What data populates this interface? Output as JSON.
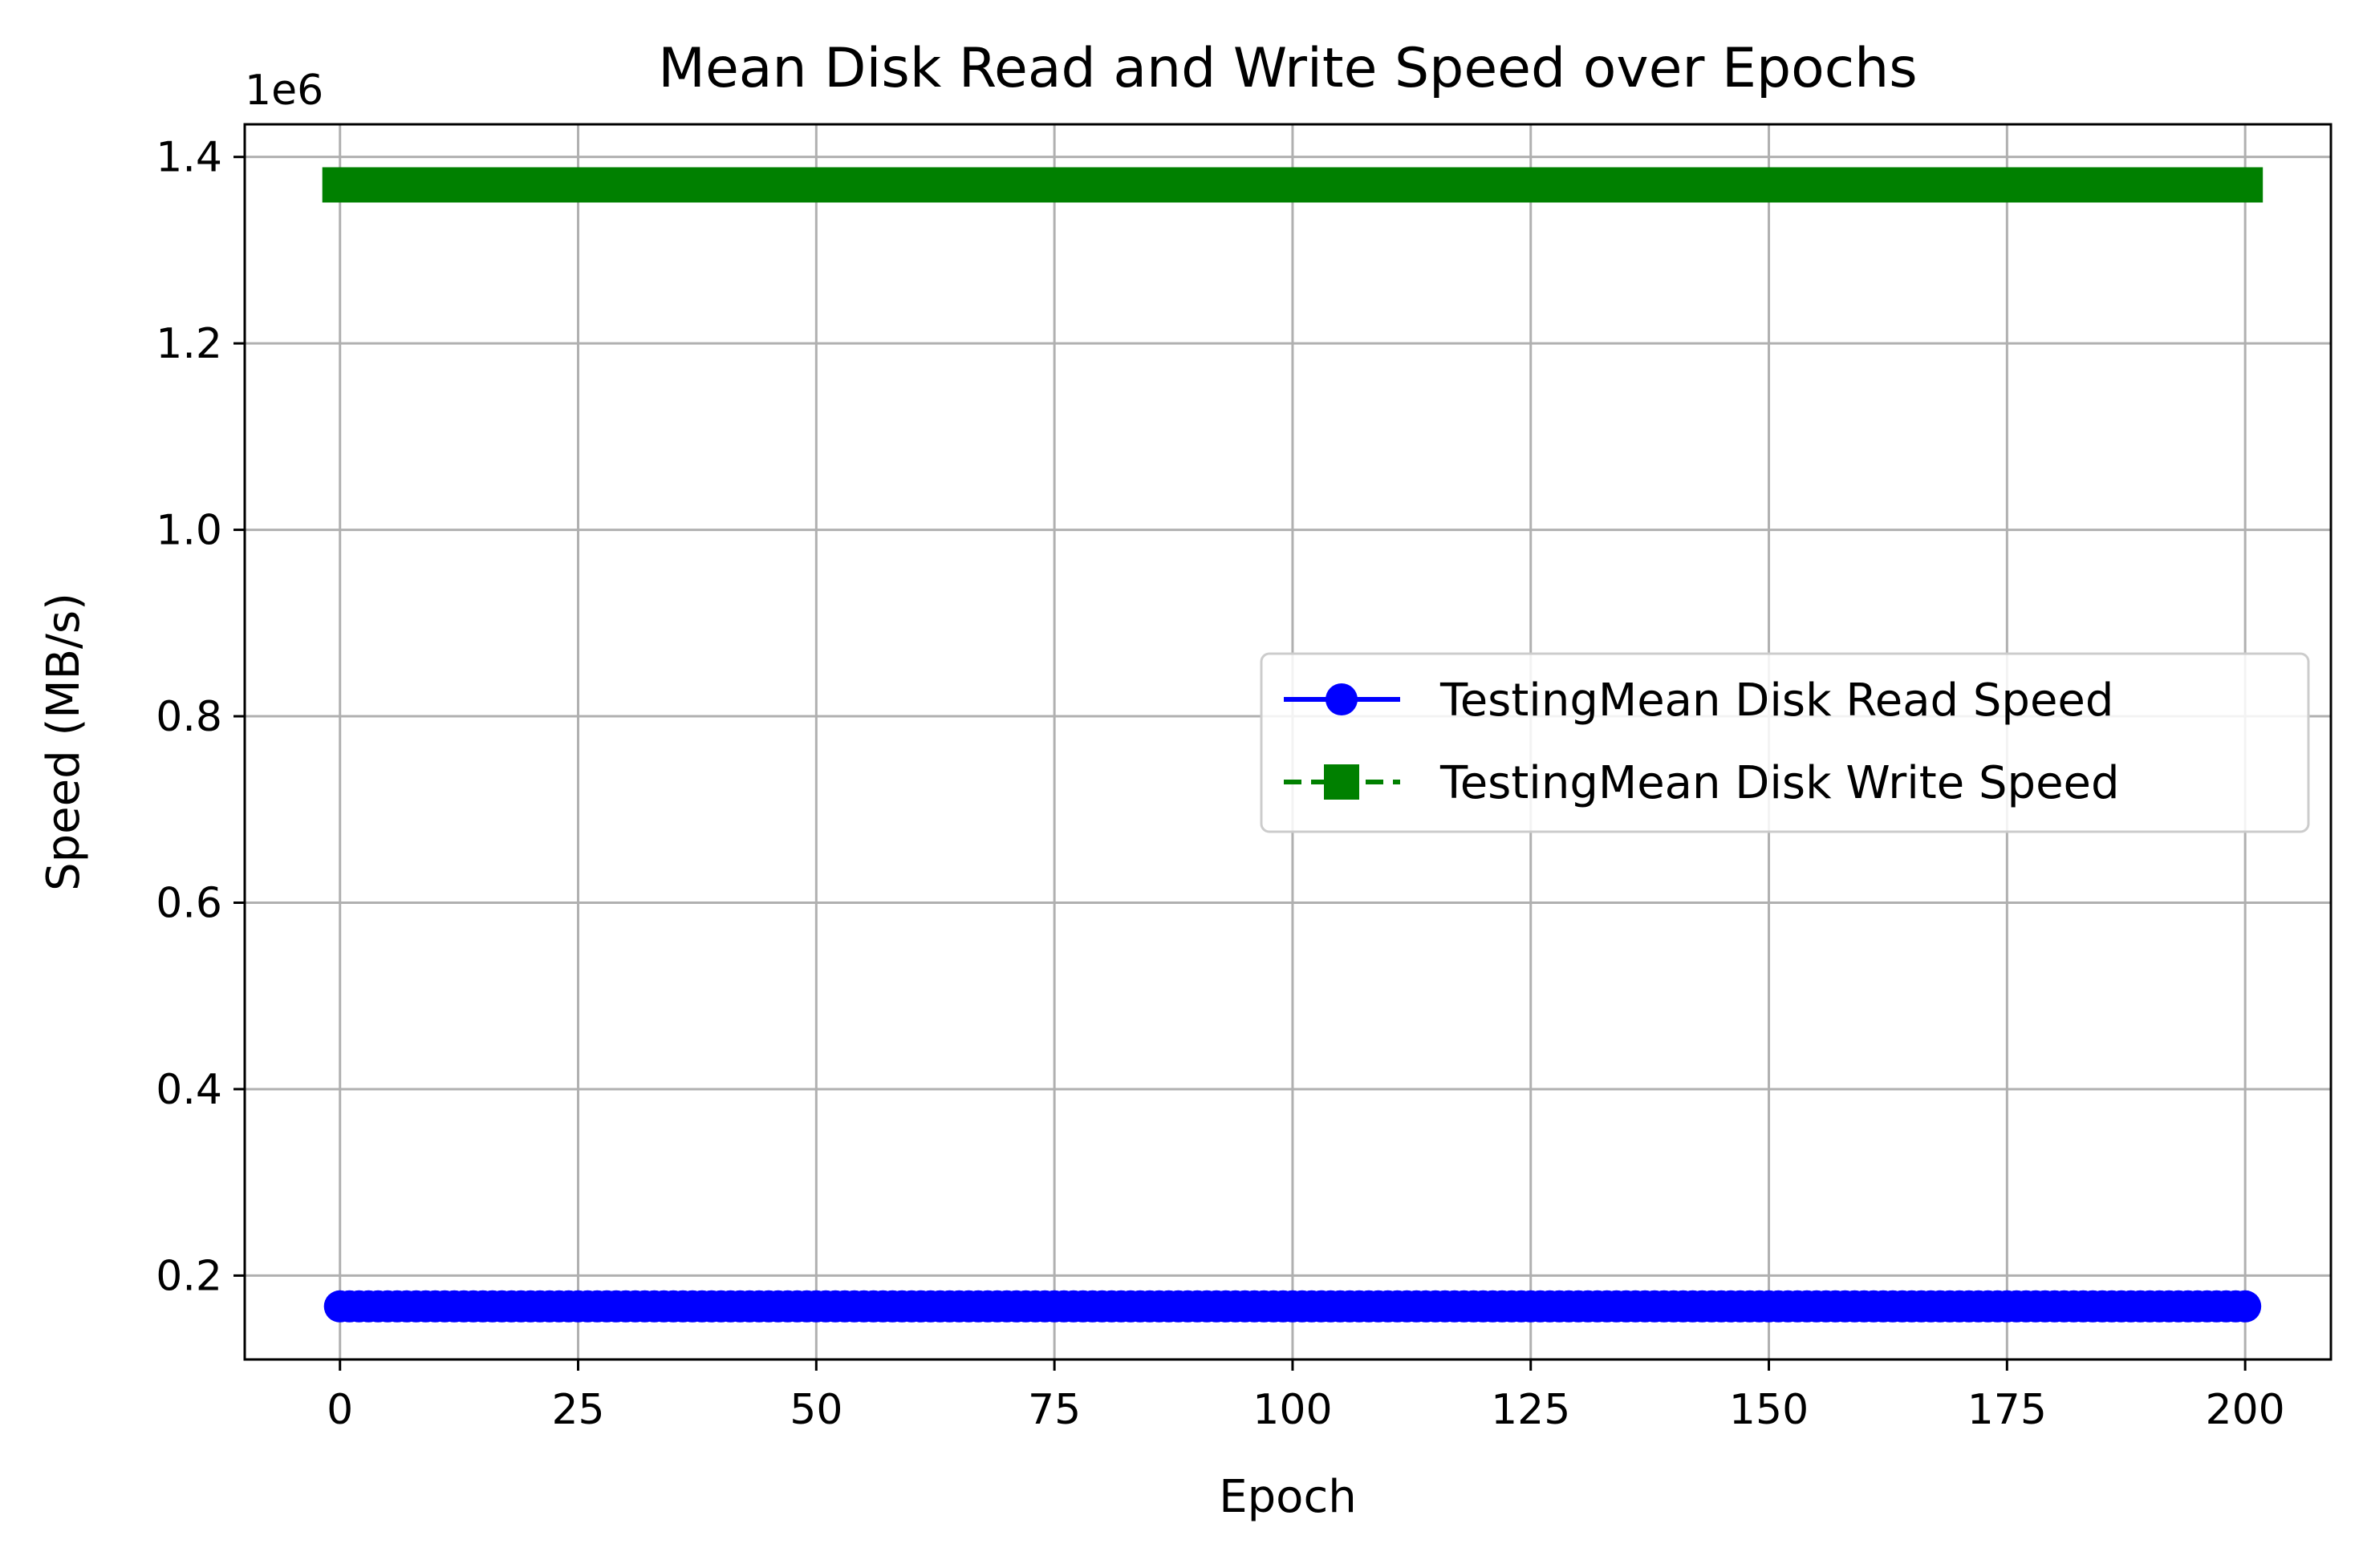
{
  "chart_data": {
    "type": "line",
    "title": "Mean Disk Read and Write Speed over Epochs",
    "xlabel": "Epoch",
    "ylabel": "Speed (MB/s)",
    "y_offset_label": "1e6",
    "xlim": [
      -10,
      209
    ],
    "ylim": [
      0.11,
      1.435
    ],
    "y_scale_note": "values shown in units of 1e6 MB/s",
    "x_ticks": [
      0,
      25,
      50,
      75,
      100,
      125,
      150,
      175,
      200
    ],
    "x_tick_labels": [
      "0",
      "25",
      "50",
      "75",
      "100",
      "125",
      "150",
      "175",
      "200"
    ],
    "y_ticks": [
      0.2,
      0.4,
      0.6,
      0.8,
      1.0,
      1.2,
      1.4
    ],
    "y_tick_labels": [
      "0.2",
      "0.4",
      "0.6",
      "0.8",
      "1.0",
      "1.2",
      "1.4"
    ],
    "grid": true,
    "legend_position": "center-right",
    "x": {
      "start": 0,
      "end": 200,
      "step": 1
    },
    "series": [
      {
        "name": "TestingMean Disk Read Speed",
        "color": "#0000ff",
        "line_style": "solid",
        "marker": "circle",
        "values_constant": 0.167
      },
      {
        "name": "TestingMean Disk Write Speed",
        "color": "#008000",
        "line_style": "dashed",
        "marker": "square",
        "values_constant": 1.37
      }
    ]
  }
}
